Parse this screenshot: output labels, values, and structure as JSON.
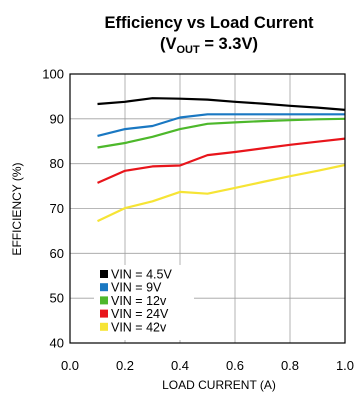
{
  "chart_data": {
    "type": "line",
    "title": "Efficiency vs Load Current",
    "subtitle": {
      "prefix": "(V",
      "subscript": "OUT",
      "suffix": " = 3.3V)"
    },
    "xlabel": "LOAD CURRENT (A)",
    "ylabel": "EFFICIENCY (%)",
    "xlim": [
      0.0,
      1.0
    ],
    "ylim": [
      40,
      100
    ],
    "xticks": [
      "0.0",
      "0.2",
      "0.4",
      "0.6",
      "0.8",
      "1.0"
    ],
    "yticks": [
      "40",
      "50",
      "60",
      "70",
      "80",
      "90",
      "100"
    ],
    "grid": true,
    "legend_position": "bottom-left",
    "series": [
      {
        "name": "VIN = 4.5V",
        "color": "#000000",
        "x": [
          0.1,
          0.2,
          0.3,
          0.4,
          0.5,
          0.6,
          0.7,
          0.8,
          0.9,
          1.0
        ],
        "values": [
          93.3,
          93.8,
          94.6,
          94.5,
          94.3,
          93.8,
          93.4,
          92.9,
          92.5,
          92.0
        ]
      },
      {
        "name": "VIN = 9V",
        "color": "#1a78c2",
        "x": [
          0.1,
          0.2,
          0.3,
          0.4,
          0.5,
          0.6,
          0.7,
          0.8,
          0.9,
          1.0
        ],
        "values": [
          86.2,
          87.7,
          88.4,
          90.3,
          91.0,
          91.0,
          91.0,
          91.0,
          91.0,
          91.0
        ]
      },
      {
        "name": "VIN = 12v",
        "color": "#4db82b",
        "x": [
          0.1,
          0.2,
          0.3,
          0.4,
          0.5,
          0.6,
          0.7,
          0.8,
          0.9,
          1.0
        ],
        "values": [
          83.6,
          84.6,
          86.0,
          87.7,
          88.9,
          89.2,
          89.5,
          89.7,
          89.9,
          90.0
        ]
      },
      {
        "name": "VIN = 24V",
        "color": "#e8151b",
        "x": [
          0.1,
          0.2,
          0.3,
          0.4,
          0.5,
          0.6,
          0.7,
          0.8,
          0.9,
          1.0
        ],
        "values": [
          75.7,
          78.4,
          79.4,
          79.6,
          81.9,
          82.6,
          83.4,
          84.2,
          84.9,
          85.6
        ]
      },
      {
        "name": "VIN = 42v",
        "color": "#f6e435",
        "x": [
          0.1,
          0.2,
          0.3,
          0.4,
          0.5,
          0.6,
          0.7,
          0.8,
          0.9,
          1.0
        ],
        "values": [
          67.2,
          70.1,
          71.6,
          73.7,
          73.3,
          74.6,
          75.9,
          77.2,
          78.4,
          79.7
        ]
      }
    ]
  }
}
